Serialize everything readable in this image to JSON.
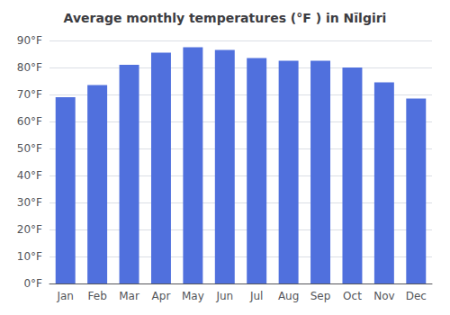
{
  "chart_data": {
    "type": "bar",
    "title": "Average monthly temperatures (°F ) in Nīlgiri",
    "categories": [
      "Jan",
      "Feb",
      "Mar",
      "Apr",
      "May",
      "Jun",
      "Jul",
      "Aug",
      "Sep",
      "Oct",
      "Nov",
      "Dec"
    ],
    "values": [
      69,
      73.5,
      81,
      85.5,
      87.5,
      86.5,
      83.5,
      82.5,
      82.5,
      80,
      74.5,
      68.5
    ],
    "ylim": [
      0,
      90
    ],
    "yticks": [
      {
        "value": 0,
        "label": "0°F"
      },
      {
        "value": 10,
        "label": "10°F"
      },
      {
        "value": 20,
        "label": "20°F"
      },
      {
        "value": 30,
        "label": "30°F"
      },
      {
        "value": 40,
        "label": "40°F"
      },
      {
        "value": 50,
        "label": "50°F"
      },
      {
        "value": 60,
        "label": "60°F"
      },
      {
        "value": 70,
        "label": "70°F"
      },
      {
        "value": 80,
        "label": "80°F"
      },
      {
        "value": 90,
        "label": "90°F"
      }
    ],
    "grid": true
  }
}
